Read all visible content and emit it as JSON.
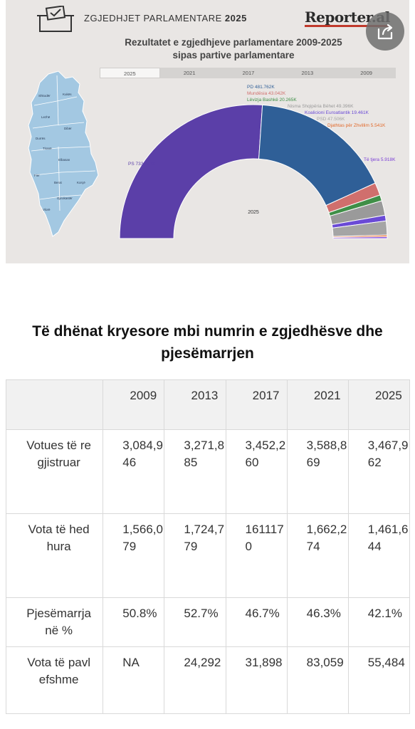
{
  "header": {
    "title_regular": "ZGJEDHJET PARLAMENTARE ",
    "title_year": "2025",
    "brand": "Reporter.al",
    "icons": {
      "ballot": "ballot-box-icon",
      "share": "share-icon"
    }
  },
  "chart_title": {
    "line1": "Rezultatet e zgjedhjeve parlamentare 2009-2025",
    "line2": "sipas partive parlamentare"
  },
  "tabs": [
    "2025",
    "2021",
    "2017",
    "2013",
    "2009"
  ],
  "active_tab": "2025",
  "map": {
    "regions": [
      "Shkodër",
      "Kukës",
      "Lezhë",
      "Dibër",
      "Durrës",
      "Tiranë",
      "Elbasan",
      "Fier",
      "Berat",
      "Korçë",
      "Gjirokastër",
      "Vlorë"
    ],
    "color": "#a3c8e2"
  },
  "chart_data": {
    "type": "pie",
    "variant": "half-donut",
    "center_label": "2025",
    "slices": [
      {
        "label": "PS 733.271K",
        "value": 733.271,
        "color": "#5b3fa8"
      },
      {
        "label": "PD 481.762K",
        "value": 481.762,
        "color": "#2f5f97"
      },
      {
        "label": "Mundësia 43.042K",
        "value": 43.042,
        "color": "#d06f6d"
      },
      {
        "label": "Lëvizja Bashkë 20.265K",
        "value": 20.265,
        "color": "#3f8f47"
      },
      {
        "label": "Nisma Shqipëria Bëhet 49.396K",
        "value": 49.396,
        "color": "#9a9a9a"
      },
      {
        "label": "Koalicioni Euroatlantik 19.461K",
        "value": 19.461,
        "color": "#6a4ad6"
      },
      {
        "label": "PSD 47.506K",
        "value": 47.506,
        "color": "#a5a5a5"
      },
      {
        "label": "Djathtas për Zhvillim 5.541K",
        "value": 5.541,
        "color": "#e2692a"
      },
      {
        "label": "Të tjera 5.918K",
        "value": 5.918,
        "color": "#7b3fd6"
      }
    ]
  },
  "section_title": "Të dhënat kryesore mbi numrin e zgjedhësve dhe pjesëmarrjen",
  "table": {
    "corner": "",
    "years": [
      "2009",
      "2013",
      "2017",
      "2021",
      "2025"
    ],
    "rows": [
      {
        "label": "Votues të regjistruar",
        "values": [
          "3,084,946",
          "3,271,885",
          "3,452,260",
          "3,588,869",
          "3,467,962"
        ]
      },
      {
        "label": "Vota të hedhura",
        "values": [
          "1,566,079",
          "1,724,779",
          "1611170",
          "1,662,274",
          "1,461,644"
        ]
      },
      {
        "label": "Pjesëmarrja në %",
        "values": [
          "50.8%",
          "52.7%",
          "46.7%",
          "46.3%",
          "42.1%"
        ]
      },
      {
        "label": "Vota të pavlefshme",
        "values": [
          "NA",
          "24,292",
          "31,898",
          "83,059",
          "55,484"
        ]
      }
    ]
  }
}
